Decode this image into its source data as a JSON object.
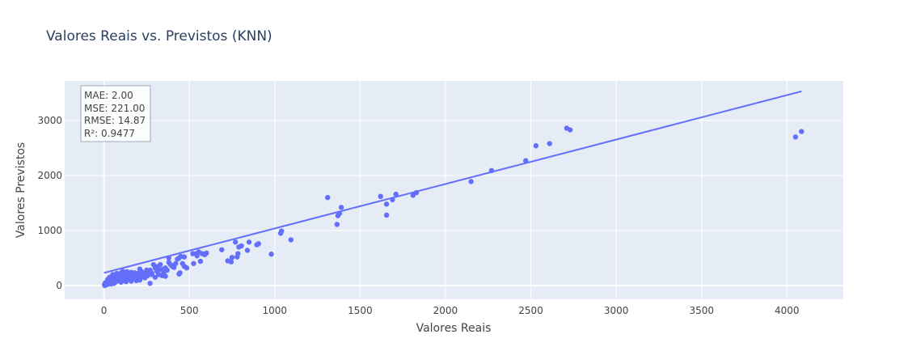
{
  "chart_data": {
    "type": "scatter",
    "title": "Valores Reais vs. Previstos (KNN)",
    "xlabel": "Valores Reais",
    "ylabel": "Valores Previstos",
    "xlim": [
      -230,
      4330
    ],
    "ylim": [
      -250,
      3720
    ],
    "x_ticks": [
      0,
      500,
      1000,
      1500,
      2000,
      2500,
      3000,
      3500,
      4000
    ],
    "y_ticks": [
      0,
      1000,
      2000,
      3000
    ],
    "grid": true,
    "marker_color": "#636efa",
    "plot_bg": "#e5ecf6",
    "annotation": [
      "MAE: 2.00",
      "MSE: 221.00",
      "RMSE: 14.87",
      "R²: 0.9477"
    ],
    "trend_line": {
      "x": [
        0,
        4085
      ],
      "y": [
        230,
        3530
      ]
    },
    "points": [
      [
        4085,
        2800
      ],
      [
        4050,
        2700
      ],
      [
        2730,
        2830
      ],
      [
        2710,
        2860
      ],
      [
        2610,
        2580
      ],
      [
        2530,
        2540
      ],
      [
        2470,
        2270
      ],
      [
        2270,
        2090
      ],
      [
        2150,
        1890
      ],
      [
        1830,
        1690
      ],
      [
        1810,
        1640
      ],
      [
        1710,
        1660
      ],
      [
        1690,
        1560
      ],
      [
        1655,
        1480
      ],
      [
        1655,
        1280
      ],
      [
        1620,
        1620
      ],
      [
        1390,
        1420
      ],
      [
        1380,
        1310
      ],
      [
        1370,
        1270
      ],
      [
        1365,
        1110
      ],
      [
        1310,
        1600
      ],
      [
        1095,
        830
      ],
      [
        1040,
        990
      ],
      [
        1035,
        950
      ],
      [
        980,
        570
      ],
      [
        905,
        760
      ],
      [
        895,
        740
      ],
      [
        850,
        790
      ],
      [
        840,
        640
      ],
      [
        805,
        720
      ],
      [
        790,
        700
      ],
      [
        785,
        580
      ],
      [
        780,
        520
      ],
      [
        770,
        790
      ],
      [
        750,
        510
      ],
      [
        745,
        430
      ],
      [
        725,
        450
      ],
      [
        690,
        650
      ],
      [
        600,
        590
      ],
      [
        590,
        560
      ],
      [
        575,
        580
      ],
      [
        565,
        440
      ],
      [
        555,
        610
      ],
      [
        545,
        540
      ],
      [
        540,
        580
      ],
      [
        525,
        400
      ],
      [
        520,
        580
      ],
      [
        485,
        320
      ],
      [
        470,
        520
      ],
      [
        460,
        400
      ],
      [
        450,
        530
      ],
      [
        445,
        230
      ],
      [
        440,
        500
      ],
      [
        440,
        210
      ],
      [
        430,
        480
      ],
      [
        420,
        400
      ],
      [
        400,
        350
      ],
      [
        390,
        380
      ],
      [
        380,
        500
      ],
      [
        370,
        280
      ],
      [
        360,
        170
      ],
      [
        350,
        300
      ],
      [
        330,
        380
      ],
      [
        320,
        200
      ],
      [
        310,
        260
      ],
      [
        300,
        320
      ],
      [
        290,
        380
      ],
      [
        280,
        200
      ],
      [
        270,
        40
      ],
      [
        260,
        260
      ],
      [
        250,
        280
      ],
      [
        240,
        210
      ],
      [
        230,
        160
      ],
      [
        220,
        250
      ],
      [
        210,
        300
      ],
      [
        200,
        190
      ],
      [
        190,
        170
      ],
      [
        180,
        230
      ],
      [
        170,
        210
      ],
      [
        160,
        240
      ],
      [
        150,
        200
      ],
      [
        140,
        160
      ],
      [
        135,
        250
      ],
      [
        130,
        180
      ],
      [
        120,
        150
      ],
      [
        110,
        260
      ],
      [
        100,
        190
      ],
      [
        95,
        120
      ],
      [
        90,
        170
      ],
      [
        80,
        100
      ],
      [
        75,
        220
      ],
      [
        70,
        140
      ],
      [
        65,
        60
      ],
      [
        60,
        180
      ],
      [
        55,
        110
      ],
      [
        50,
        80
      ],
      [
        45,
        150
      ],
      [
        40,
        50
      ],
      [
        35,
        120
      ],
      [
        30,
        30
      ],
      [
        25,
        90
      ],
      [
        20,
        20
      ],
      [
        15,
        40
      ],
      [
        10,
        10
      ],
      [
        5,
        0
      ],
      [
        350,
        230
      ],
      [
        340,
        180
      ],
      [
        300,
        150
      ],
      [
        280,
        230
      ],
      [
        255,
        180
      ],
      [
        240,
        140
      ],
      [
        225,
        180
      ],
      [
        205,
        150
      ],
      [
        195,
        220
      ],
      [
        175,
        130
      ],
      [
        165,
        170
      ],
      [
        155,
        120
      ],
      [
        145,
        210
      ],
      [
        125,
        120
      ],
      [
        115,
        90
      ],
      [
        105,
        140
      ],
      [
        85,
        130
      ],
      [
        72,
        70
      ],
      [
        58,
        40
      ],
      [
        48,
        130
      ],
      [
        38,
        90
      ],
      [
        28,
        60
      ],
      [
        18,
        70
      ],
      [
        12,
        30
      ],
      [
        8,
        50
      ],
      [
        210,
        100
      ],
      [
        190,
        90
      ],
      [
        160,
        80
      ],
      [
        130,
        70
      ],
      [
        100,
        60
      ],
      [
        470,
        350
      ],
      [
        410,
        330
      ],
      [
        380,
        420
      ],
      [
        360,
        320
      ],
      [
        330,
        290
      ],
      [
        310,
        340
      ],
      [
        270,
        280
      ],
      [
        245,
        230
      ],
      [
        215,
        220
      ],
      [
        185,
        180
      ],
      [
        145,
        140
      ],
      [
        120,
        200
      ],
      [
        95,
        220
      ],
      [
        82,
        160
      ],
      [
        62,
        90
      ],
      [
        52,
        200
      ],
      [
        42,
        30
      ],
      [
        33,
        150
      ],
      [
        22,
        110
      ],
      [
        3,
        20
      ]
    ]
  }
}
